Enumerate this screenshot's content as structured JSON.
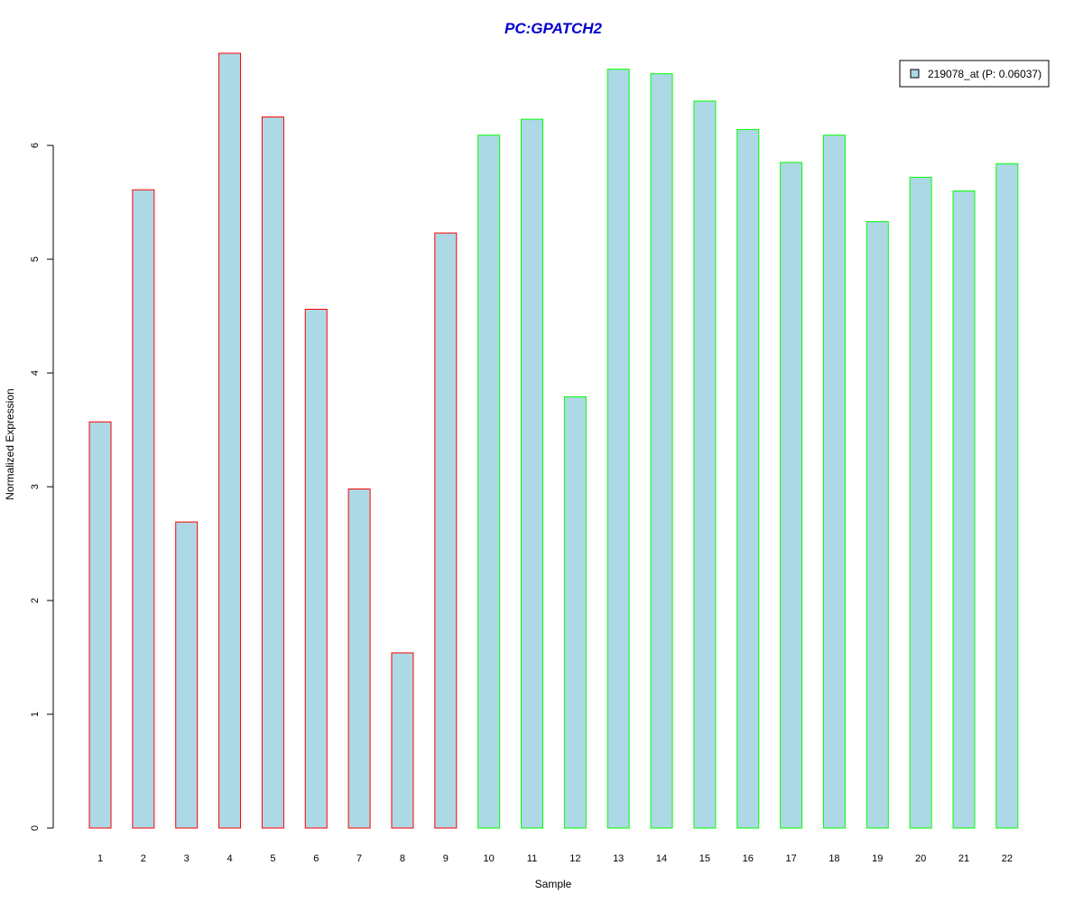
{
  "chart_data": {
    "type": "bar",
    "title": "PC:GPATCH2",
    "xlabel": "Sample",
    "ylabel": "Normalized Expression",
    "categories": [
      "1",
      "2",
      "3",
      "4",
      "5",
      "6",
      "7",
      "8",
      "9",
      "10",
      "11",
      "12",
      "13",
      "14",
      "15",
      "16",
      "17",
      "18",
      "19",
      "20",
      "21",
      "22"
    ],
    "series": [
      {
        "name": "219078_at (P: 0.06037)",
        "values": [
          3.57,
          5.61,
          2.69,
          6.81,
          6.25,
          4.56,
          2.98,
          1.54,
          5.23,
          6.09,
          6.23,
          3.79,
          6.67,
          6.63,
          6.39,
          6.14,
          5.85,
          6.09,
          5.33,
          5.72,
          5.6,
          5.84
        ]
      }
    ],
    "bar_border_groups": [
      "red",
      "red",
      "red",
      "red",
      "red",
      "red",
      "red",
      "red",
      "red",
      "green",
      "green",
      "green",
      "green",
      "green",
      "green",
      "green",
      "green",
      "green",
      "green",
      "green",
      "green",
      "green"
    ],
    "yticks": [
      0,
      1,
      2,
      3,
      4,
      5,
      6
    ],
    "ylim": [
      0,
      6.81
    ],
    "grid": false,
    "legend_position": "top-right"
  },
  "colors": {
    "title": "#0000cc",
    "bar_fill": "#add8e6",
    "border_red": "#ff0000",
    "border_green": "#00ff00",
    "axis": "#000000"
  }
}
